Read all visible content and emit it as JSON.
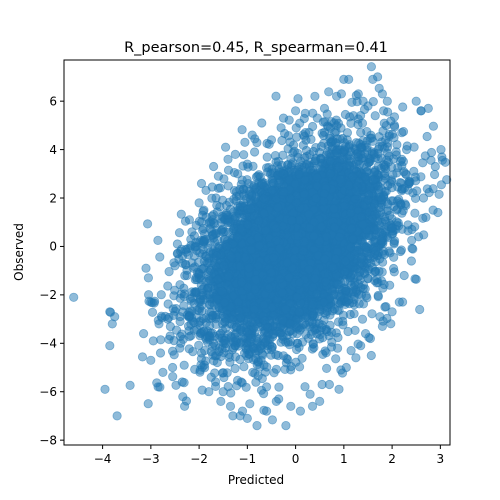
{
  "chart_data": {
    "type": "scatter",
    "title": "R_pearson=0.45, R_spearman=0.41",
    "xlabel": "Predicted",
    "ylabel": "Observed",
    "xlim": [
      -4.8,
      3.2
    ],
    "ylim": [
      -8.2,
      7.7
    ],
    "xticks": [
      -4,
      -3,
      -2,
      -1,
      0,
      1,
      2,
      3
    ],
    "xtick_labels": [
      "−4",
      "−3",
      "−2",
      "−1",
      "0",
      "1",
      "2",
      "3"
    ],
    "yticks": [
      -8,
      -6,
      -4,
      -2,
      0,
      2,
      4,
      6
    ],
    "ytick_labels": [
      "−8",
      "−6",
      "−4",
      "−2",
      "0",
      "2",
      "4",
      "6"
    ],
    "grid": false,
    "legend": "none",
    "marker_color": "#1f77b4",
    "marker_alpha": 0.5,
    "series": [
      {
        "points": [
          [
            -4.6,
            -2.1
          ],
          [
            -3.85,
            -2.7
          ],
          [
            -3.75,
            -2.9
          ],
          [
            -3.8,
            -3.2
          ],
          [
            -3.85,
            -4.1
          ],
          [
            -3.95,
            -5.9
          ],
          [
            -3.7,
            -7.0
          ],
          [
            -3.15,
            -3.6
          ],
          [
            -3.1,
            -0.9
          ],
          [
            -3.05,
            -1.3
          ],
          [
            -3.0,
            -2.3
          ],
          [
            -2.95,
            -3.9
          ],
          [
            -3.0,
            -4.7
          ],
          [
            -2.85,
            -5.8
          ],
          [
            -2.8,
            -4.4
          ],
          [
            -2.65,
            -3.0
          ],
          [
            -2.6,
            -3.7
          ],
          [
            -2.55,
            -5.0
          ],
          [
            -2.5,
            -0.8
          ],
          [
            -2.45,
            -0.3
          ],
          [
            -2.4,
            -4.2
          ],
          [
            -2.35,
            -5.6
          ],
          [
            -2.3,
            -6.6
          ],
          [
            -2.25,
            -1.2
          ],
          [
            -2.2,
            1.1
          ],
          [
            -2.15,
            0.6
          ],
          [
            -2.1,
            -0.4
          ],
          [
            -2.05,
            -1.9
          ],
          [
            -2.0,
            1.8
          ],
          [
            -1.95,
            2.6
          ],
          [
            -1.9,
            1.5
          ],
          [
            -1.85,
            0.3
          ],
          [
            -1.8,
            -6.0
          ],
          [
            -1.75,
            -5.4
          ],
          [
            -1.7,
            3.3
          ],
          [
            -1.65,
            2.0
          ],
          [
            -1.6,
            2.9
          ],
          [
            -1.55,
            -6.4
          ],
          [
            -1.5,
            -6.0
          ],
          [
            -1.45,
            4.1
          ],
          [
            -1.4,
            3.6
          ],
          [
            -1.35,
            -6.6
          ],
          [
            -1.3,
            -7.0
          ],
          [
            -1.25,
            3.8
          ],
          [
            -1.2,
            3.0
          ],
          [
            -1.1,
            -6.8
          ],
          [
            -1.05,
            4.3
          ],
          [
            -1.0,
            -7.1
          ],
          [
            -0.95,
            -6.5
          ],
          [
            -0.9,
            4.6
          ],
          [
            -0.8,
            -7.4
          ],
          [
            -0.7,
            5.1
          ],
          [
            -0.6,
            -6.8
          ],
          [
            -0.5,
            4.4
          ],
          [
            -0.4,
            -6.4
          ],
          [
            -0.35,
            -6.3
          ],
          [
            -0.3,
            4.9
          ],
          [
            -0.2,
            -7.4
          ],
          [
            -0.1,
            -6.6
          ],
          [
            0.0,
            5.6
          ],
          [
            0.05,
            6.1
          ],
          [
            0.1,
            -6.8
          ],
          [
            0.2,
            5.5
          ],
          [
            0.3,
            -6.1
          ],
          [
            0.4,
            6.2
          ],
          [
            0.45,
            5.3
          ],
          [
            0.5,
            -6.4
          ],
          [
            0.55,
            -5.7
          ],
          [
            0.6,
            5.7
          ],
          [
            0.7,
            -5.7
          ],
          [
            0.8,
            5.1
          ],
          [
            0.9,
            -5.9
          ],
          [
            0.95,
            6.3
          ],
          [
            1.0,
            6.9
          ],
          [
            1.05,
            -5.0
          ],
          [
            1.1,
            6.9
          ],
          [
            1.15,
            -4.3
          ],
          [
            1.2,
            5.4
          ],
          [
            1.25,
            -4.6
          ],
          [
            1.3,
            6.3
          ],
          [
            1.4,
            6.0
          ],
          [
            1.45,
            -3.6
          ],
          [
            1.5,
            5.8
          ],
          [
            1.55,
            -3.8
          ],
          [
            1.6,
            6.9
          ],
          [
            1.7,
            7.0
          ],
          [
            1.75,
            -2.9
          ],
          [
            1.8,
            6.3
          ],
          [
            1.85,
            -2.5
          ],
          [
            1.9,
            6.0
          ],
          [
            1.95,
            -1.6
          ],
          [
            2.0,
            -2.7
          ],
          [
            2.05,
            5.0
          ],
          [
            2.1,
            4.2
          ],
          [
            2.15,
            -2.3
          ],
          [
            2.2,
            3.6
          ],
          [
            2.25,
            -1.2
          ],
          [
            2.3,
            4.0
          ],
          [
            2.35,
            2.6
          ],
          [
            2.4,
            -0.6
          ],
          [
            2.45,
            3.1
          ],
          [
            2.5,
            6.0
          ],
          [
            2.55,
            0.4
          ],
          [
            2.6,
            5.6
          ],
          [
            2.65,
            2.0
          ],
          [
            2.7,
            1.2
          ],
          [
            2.75,
            5.7
          ],
          [
            2.85,
            1.5
          ],
          [
            2.95,
            1.4
          ],
          [
            -2.75,
            -5.2
          ],
          [
            -1.15,
            -7.0
          ],
          [
            -2.2,
            -2.9
          ],
          [
            -1.95,
            -4.4
          ],
          [
            -0.85,
            3.9
          ],
          [
            -0.25,
            5.3
          ],
          [
            0.35,
            -6.6
          ],
          [
            0.85,
            6.2
          ],
          [
            1.65,
            5.4
          ],
          [
            2.2,
            4.7
          ],
          [
            -2.45,
            0.1
          ],
          [
            -1.6,
            2.4
          ],
          [
            -1.0,
            3.4
          ],
          [
            1.35,
            -4.1
          ],
          [
            1.8,
            -3.3
          ],
          [
            -0.6,
            -5.8
          ]
        ],
        "cloud": {
          "n": 6500,
          "mean_x": 0.0,
          "sd_x": 0.95,
          "mean_y": 0.0,
          "sd_y": 1.95,
          "correlation": 0.45
        }
      }
    ]
  }
}
